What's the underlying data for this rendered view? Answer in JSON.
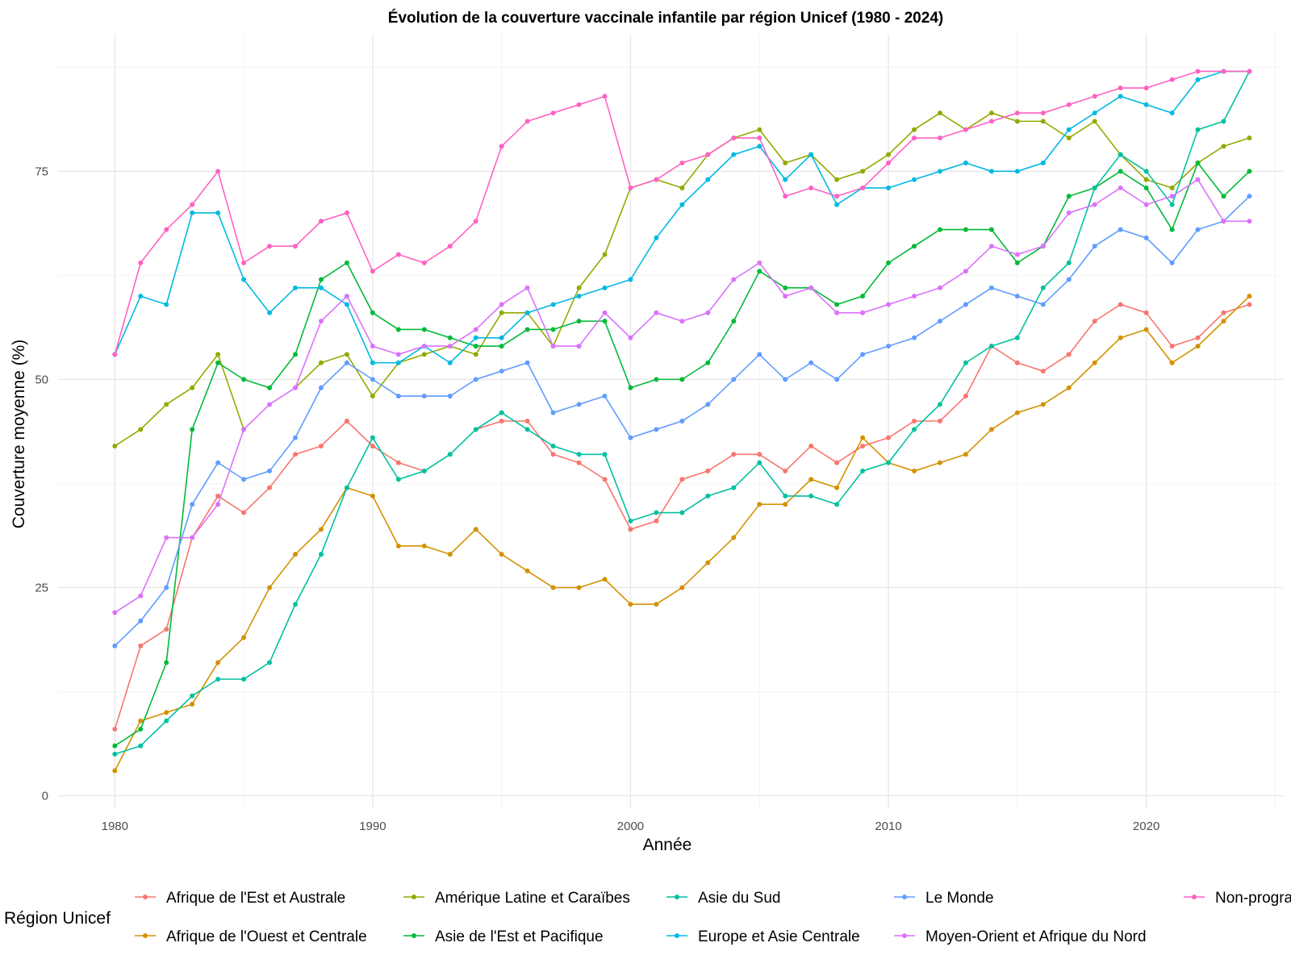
{
  "chart_data": {
    "type": "line",
    "title": "Évolution de la couverture vaccinale infantile par région Unicef (1980 - 2024)",
    "xlabel": "Année",
    "ylabel": "Couverture moyenne (%)",
    "xlim": [
      1977.8,
      2025.3
    ],
    "ylim": [
      -1.5,
      91.5
    ],
    "x_ticks": [
      1980,
      1990,
      2000,
      2010,
      2020
    ],
    "y_ticks": [
      0,
      25,
      50,
      75
    ],
    "grid": true,
    "legend": {
      "title": "Région Unicef",
      "position": "bottom"
    },
    "x": [
      1980,
      1981,
      1982,
      1983,
      1984,
      1985,
      1986,
      1987,
      1988,
      1989,
      1990,
      1991,
      1992,
      1993,
      1994,
      1995,
      1996,
      1997,
      1998,
      1999,
      2000,
      2001,
      2002,
      2003,
      2004,
      2005,
      2006,
      2007,
      2008,
      2009,
      2010,
      2011,
      2012,
      2013,
      2014,
      2015,
      2016,
      2017,
      2018,
      2019,
      2020,
      2021,
      2022,
      2023,
      2024
    ],
    "series": [
      {
        "name": "Afrique de l'Est et Australe",
        "color": "#F8766D",
        "values": [
          8,
          18,
          20,
          31,
          36,
          34,
          37,
          41,
          42,
          45,
          42,
          40,
          39,
          null,
          44,
          45,
          45,
          41,
          40,
          38,
          32,
          33,
          38,
          39,
          41,
          41,
          39,
          42,
          40,
          42,
          43,
          45,
          45,
          48,
          54,
          52,
          51,
          53,
          57,
          59,
          58,
          54,
          55,
          58,
          59
        ]
      },
      {
        "name": "Afrique de l'Ouest et Centrale",
        "color": "#D39200",
        "values": [
          3,
          9,
          10,
          11,
          16,
          19,
          25,
          29,
          32,
          37,
          36,
          30,
          30,
          29,
          32,
          29,
          27,
          25,
          25,
          26,
          23,
          23,
          25,
          28,
          31,
          35,
          35,
          38,
          37,
          43,
          40,
          39,
          40,
          41,
          44,
          46,
          47,
          49,
          52,
          55,
          56,
          52,
          54,
          57,
          60
        ]
      },
      {
        "name": "Amérique Latine et Caraïbes",
        "color": "#93AA00",
        "values": [
          42,
          44,
          47,
          49,
          53,
          44,
          null,
          49,
          52,
          53,
          48,
          52,
          53,
          54,
          53,
          58,
          58,
          54,
          61,
          65,
          73,
          74,
          73,
          77,
          79,
          80,
          76,
          77,
          74,
          75,
          77,
          80,
          82,
          80,
          82,
          81,
          81,
          79,
          81,
          77,
          74,
          73,
          76,
          78,
          79
        ]
      },
      {
        "name": "Asie de l'Est et Pacifique",
        "color": "#00BA38",
        "values": [
          6,
          8,
          16,
          44,
          52,
          50,
          49,
          53,
          62,
          64,
          58,
          56,
          56,
          55,
          54,
          54,
          56,
          56,
          57,
          57,
          49,
          50,
          50,
          52,
          57,
          63,
          61,
          61,
          59,
          60,
          64,
          66,
          68,
          68,
          68,
          64,
          66,
          72,
          73,
          75,
          73,
          68,
          76,
          72,
          75
        ]
      },
      {
        "name": "Asie du Sud",
        "color": "#00C19F",
        "values": [
          5,
          6,
          9,
          12,
          14,
          14,
          16,
          23,
          29,
          37,
          43,
          38,
          39,
          41,
          44,
          46,
          44,
          42,
          41,
          41,
          33,
          34,
          34,
          36,
          37,
          40,
          36,
          36,
          35,
          39,
          40,
          44,
          47,
          52,
          54,
          55,
          61,
          64,
          73,
          77,
          75,
          71,
          80,
          81,
          87
        ]
      },
      {
        "name": "Europe et Asie Centrale",
        "color": "#00B9E3",
        "values": [
          53,
          60,
          59,
          70,
          70,
          62,
          58,
          61,
          61,
          59,
          52,
          52,
          54,
          52,
          55,
          55,
          58,
          59,
          60,
          61,
          62,
          67,
          71,
          74,
          77,
          78,
          74,
          77,
          71,
          73,
          73,
          74,
          75,
          76,
          75,
          75,
          76,
          80,
          82,
          84,
          83,
          82,
          86,
          87,
          87
        ]
      },
      {
        "name": "Le Monde",
        "color": "#619CFF",
        "values": [
          18,
          21,
          25,
          35,
          40,
          38,
          39,
          43,
          49,
          52,
          50,
          48,
          48,
          48,
          50,
          51,
          52,
          46,
          47,
          48,
          43,
          44,
          45,
          47,
          50,
          53,
          50,
          52,
          50,
          53,
          54,
          55,
          57,
          59,
          61,
          60,
          59,
          62,
          66,
          68,
          67,
          64,
          68,
          69,
          72
        ]
      },
      {
        "name": "Moyen-Orient et Afrique du Nord",
        "color": "#DB72FB",
        "values": [
          22,
          24,
          31,
          31,
          35,
          44,
          47,
          49,
          57,
          60,
          54,
          53,
          54,
          54,
          56,
          59,
          61,
          54,
          54,
          58,
          55,
          58,
          57,
          58,
          62,
          64,
          60,
          61,
          58,
          58,
          59,
          60,
          61,
          63,
          66,
          65,
          66,
          70,
          71,
          73,
          71,
          72,
          74,
          69,
          69
        ]
      },
      {
        "name": "Non-programme",
        "color": "#FF61C3",
        "values": [
          53,
          64,
          68,
          71,
          75,
          64,
          66,
          66,
          69,
          70,
          63,
          65,
          64,
          66,
          69,
          78,
          81,
          82,
          83,
          84,
          73,
          74,
          76,
          77,
          79,
          79,
          72,
          73,
          72,
          73,
          76,
          79,
          79,
          80,
          81,
          82,
          82,
          83,
          84,
          85,
          85,
          86,
          87,
          87,
          87
        ]
      }
    ]
  },
  "legend_labels": {
    "title": "Région Unicef",
    "col1_row1": "Afrique de l'Est et Australe",
    "col1_row2": "Afrique de l'Ouest et Centrale",
    "col2_row1": "Amérique Latine et Caraïbes",
    "col2_row2": "Asie de l'Est et Pacifique",
    "col3_row1": "Asie du Sud",
    "col3_row2": "Europe et Asie Centrale",
    "col4_row1": "Le Monde",
    "col4_row2": "Moyen-Orient et Afrique du Nord",
    "col5_row1": "Non-progra"
  }
}
